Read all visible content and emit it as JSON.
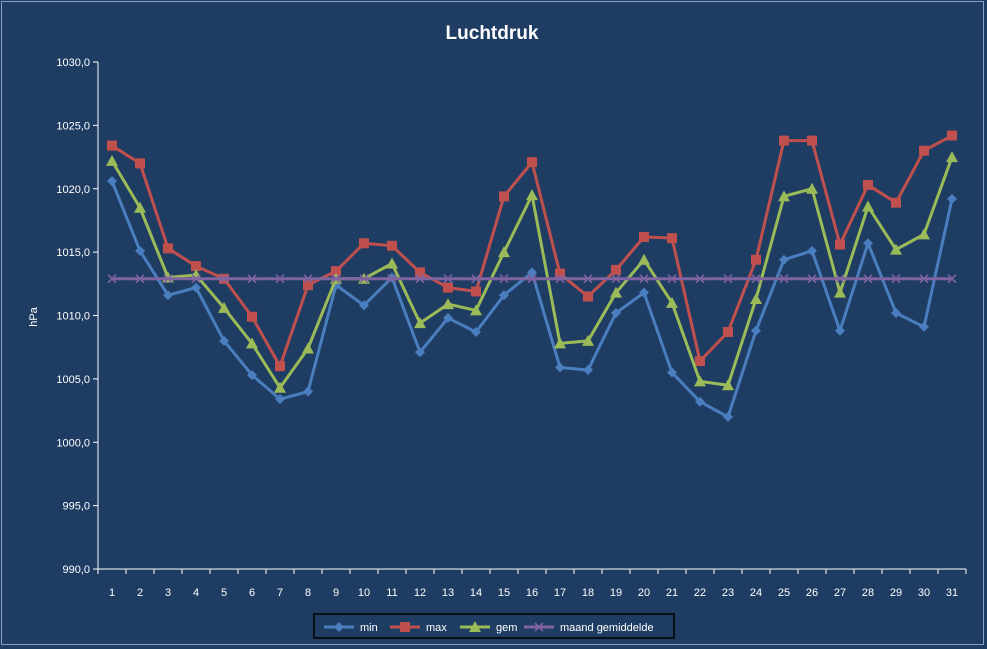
{
  "chart_data": {
    "type": "line",
    "title": "Luchtdruk",
    "xlabel": "",
    "ylabel": "hPa",
    "ylim": [
      990,
      1030
    ],
    "yticks": [
      "990,0",
      "995,0",
      "1000,0",
      "1005,0",
      "1010,0",
      "1015,0",
      "1020,0",
      "1025,0",
      "1030,0"
    ],
    "categories": [
      "1",
      "2",
      "3",
      "4",
      "5",
      "6",
      "7",
      "8",
      "9",
      "10",
      "11",
      "12",
      "13",
      "14",
      "15",
      "16",
      "17",
      "18",
      "19",
      "20",
      "21",
      "22",
      "23",
      "24",
      "25",
      "26",
      "27",
      "28",
      "29",
      "30",
      "31"
    ],
    "grid": false,
    "legend_position": "bottom",
    "series": [
      {
        "name": "min",
        "color": "#4a7ebf",
        "marker": "diamond",
        "values": [
          1020.6,
          1015.1,
          1011.6,
          1012.2,
          1008.0,
          1005.3,
          1003.4,
          1004.0,
          1012.4,
          1010.8,
          1013.0,
          1007.1,
          1009.8,
          1008.7,
          1011.6,
          1013.4,
          1005.9,
          1005.7,
          1010.2,
          1011.8,
          1005.5,
          1003.2,
          1002.0,
          1008.8,
          1014.4,
          1015.1,
          1008.8,
          1015.7,
          1010.2,
          1009.1,
          1019.2
        ]
      },
      {
        "name": "max",
        "color": "#c0504d",
        "marker": "square",
        "values": [
          1023.4,
          1022.0,
          1015.3,
          1013.9,
          1012.9,
          1009.9,
          1006.0,
          1012.4,
          1013.5,
          1015.7,
          1015.5,
          1013.4,
          1012.2,
          1011.9,
          1019.4,
          1022.1,
          1013.3,
          1011.5,
          1013.6,
          1016.2,
          1016.1,
          1006.4,
          1008.7,
          1014.4,
          1023.8,
          1023.8,
          1015.6,
          1020.3,
          1018.9,
          1023.0,
          1024.2
        ]
      },
      {
        "name": "gem",
        "color": "#9bbb59",
        "marker": "triangle",
        "values": [
          1022.2,
          1018.5,
          1013.0,
          1013.2,
          1010.6,
          1007.8,
          1004.3,
          1007.4,
          1012.9,
          1012.9,
          1014.1,
          1009.4,
          1010.9,
          1010.4,
          1015.0,
          1019.5,
          1007.8,
          1008.0,
          1011.8,
          1014.4,
          1011.0,
          1004.8,
          1004.5,
          1011.3,
          1019.4,
          1020.0,
          1011.8,
          1018.6,
          1015.2,
          1016.4,
          1022.5
        ]
      },
      {
        "name": "maand gemiddelde",
        "color": "#8064a2",
        "marker": "x",
        "values": [
          1012.9,
          1012.9,
          1012.9,
          1012.9,
          1012.9,
          1012.9,
          1012.9,
          1012.9,
          1012.9,
          1012.9,
          1012.9,
          1012.9,
          1012.9,
          1012.9,
          1012.9,
          1012.9,
          1012.9,
          1012.9,
          1012.9,
          1012.9,
          1012.9,
          1012.9,
          1012.9,
          1012.9,
          1012.9,
          1012.9,
          1012.9,
          1012.9,
          1012.9,
          1012.9,
          1012.9
        ]
      }
    ]
  }
}
